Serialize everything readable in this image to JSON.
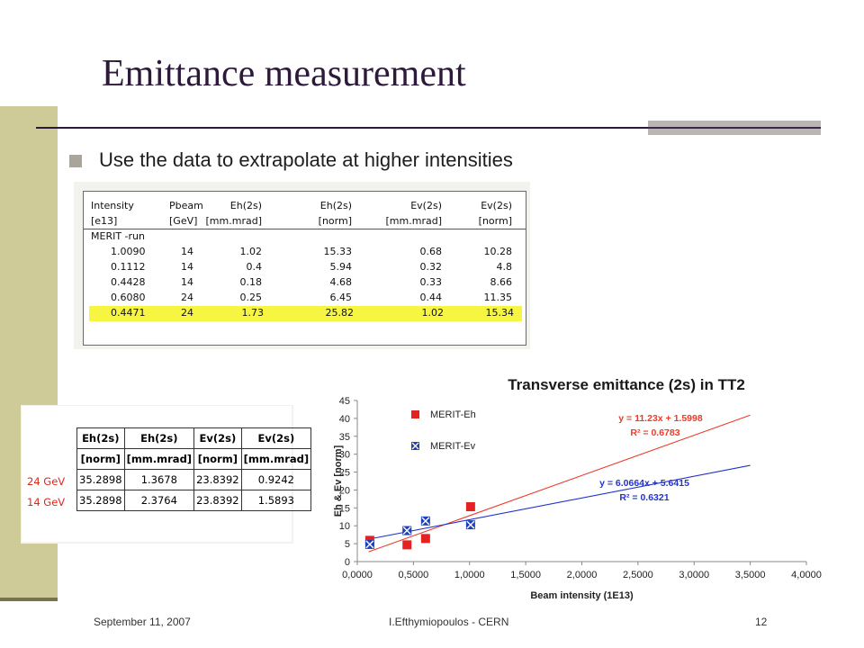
{
  "slide": {
    "title": "Emittance measurement",
    "bullet": "Use the data to extrapolate at higher intensities",
    "footer_date": "September 11, 2007",
    "footer_author": "I.Efthymiopoulos - CERN",
    "page_number": "12"
  },
  "table_merit": {
    "headers": [
      "Intensity",
      "Pbeam",
      "Eh(2s)",
      "Eh(2s)",
      "Ev(2s)",
      "Ev(2s)"
    ],
    "units": [
      "[e13]",
      "[GeV]",
      "[mm.mrad]",
      "[norm]",
      "[mm.mrad]",
      "[norm]"
    ],
    "section": "MERIT -run",
    "rows": [
      [
        "1.0090",
        "14",
        "1.02",
        "15.33",
        "0.68",
        "10.28"
      ],
      [
        "0.1112",
        "14",
        "0.4",
        "5.94",
        "0.32",
        "4.8"
      ],
      [
        "0.4428",
        "14",
        "0.18",
        "4.68",
        "0.33",
        "8.66"
      ],
      [
        "0.6080",
        "24",
        "0.25",
        "6.45",
        "0.44",
        "11.35"
      ],
      [
        "0.4471",
        "24",
        "1.73",
        "25.82",
        "1.02",
        "15.34"
      ]
    ],
    "highlight_color": "#f5f542"
  },
  "table_energy": {
    "headers": [
      "Eh(2s)",
      "Eh(2s)",
      "Ev(2s)",
      "Ev(2s)"
    ],
    "units": [
      "[norm]",
      "[mm.mrad]",
      "[norm]",
      "[mm.mrad]"
    ],
    "rows": [
      {
        "label": "24 GeV",
        "values": [
          "35.2898",
          "1.3678",
          "23.8392",
          "0.9242"
        ]
      },
      {
        "label": "14 GeV",
        "values": [
          "35.2898",
          "2.3764",
          "23.8392",
          "1.5893"
        ]
      }
    ],
    "label_color": "#e0261c"
  },
  "chart_data": {
    "type": "scatter",
    "title": "Transverse emittance (2s) in TT2",
    "xlabel": "Beam intensity (1E13)",
    "ylabel": "Eh & Ev  [norm]",
    "xlim": [
      0,
      4
    ],
    "ylim": [
      0,
      45
    ],
    "x_ticks": [
      "0,0000",
      "0,5000",
      "1,0000",
      "1,5000",
      "2,0000",
      "2,5000",
      "3,0000",
      "3,5000",
      "4,0000"
    ],
    "y_ticks": [
      "0",
      "5",
      "10",
      "15",
      "20",
      "25",
      "30",
      "35",
      "40",
      "45"
    ],
    "grid": false,
    "legend": "top-left",
    "series": [
      {
        "name": "MERIT-Eh",
        "marker": "square",
        "color": "#e52222",
        "points": [
          [
            1.009,
            15.33
          ],
          [
            0.1112,
            5.94
          ],
          [
            0.4428,
            4.68
          ],
          [
            0.608,
            6.45
          ]
        ],
        "trend": {
          "slope": 11.23,
          "intercept": 1.5998,
          "x_range": [
            0.1,
            3.5
          ],
          "color": "#ee3b2a",
          "equation": "y = 11.23x + 1.5998",
          "r2": "R² = 0.6783"
        }
      },
      {
        "name": "MERIT-Ev",
        "marker": "x-box",
        "color": "#1f3fb8",
        "points": [
          [
            1.009,
            10.28
          ],
          [
            0.1112,
            4.8
          ],
          [
            0.4428,
            8.66
          ],
          [
            0.608,
            11.35
          ]
        ],
        "trend": {
          "slope": 6.0664,
          "intercept": 5.6415,
          "x_range": [
            0.1,
            3.5
          ],
          "color": "#2233cc",
          "equation": "y = 6.0664x + 5.6415",
          "r2": "R² = 0.6321"
        }
      }
    ]
  }
}
